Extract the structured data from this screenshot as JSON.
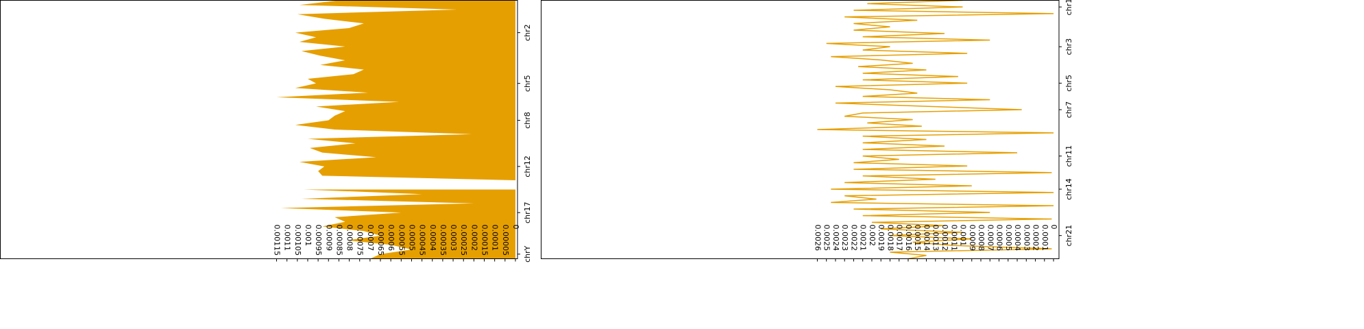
{
  "chart_data": [
    {
      "type": "area",
      "color": "#e69f00",
      "categories": [
        null,
        null,
        null,
        null,
        null,
        null,
        null,
        "chr2",
        null,
        null,
        null,
        null,
        null,
        null,
        null,
        null,
        null,
        null,
        "chr5",
        null,
        null,
        null,
        null,
        null,
        null,
        null,
        "chr8",
        null,
        null,
        null,
        null,
        null,
        null,
        null,
        null,
        null,
        "chr12",
        null,
        null,
        null,
        null,
        null,
        null,
        null,
        null,
        null,
        "chr17",
        null,
        null,
        null,
        null,
        null,
        null,
        null,
        null,
        "chrY",
        null
      ],
      "values": [
        0.00085,
        0.00104,
        0.00028,
        0.00105,
        0.00092,
        0.00073,
        0.0008,
        0.00106,
        0.00096,
        0.00104,
        0.00082,
        0.00103,
        0.00094,
        0.00082,
        0.00094,
        0.00073,
        0.00078,
        0.001,
        0.00096,
        0.00106,
        0.00071,
        0.00115,
        0.00056,
        0.00096,
        0.00082,
        0.00087,
        0.0009,
        0.00106,
        0.00087,
        0.00021,
        0.001,
        0.00077,
        0.00099,
        0.00093,
        0.00067,
        0.00104,
        0.00092,
        0.00095,
        0.00093,
        0,
        null,
        0.00102,
        0.00045,
        0.00103,
        0.0002,
        0.00113,
        0.00055,
        0.00087,
        0.00082,
        0.00093,
        0.00073,
        0.00065,
        0.00081,
        0.0006,
        0.0005,
        0.00065,
        0.0007
      ],
      "xlim": [
        0.00248,
        -1e-05
      ],
      "xticks": [
        0.00115,
        0.0011,
        0.00105,
        0.001,
        0.00095,
        0.0009,
        0.00085,
        0.0008,
        0.00075,
        0.0007,
        0.00065,
        0.0006,
        0.00055,
        0.0005,
        0.00045,
        0.0004,
        0.00035,
        0.0003,
        0.00025,
        0.0002,
        0.00015,
        0.0001,
        5e-05,
        0
      ]
    },
    {
      "type": "line",
      "color": "#e69f00",
      "categories": [
        null,
        null,
        "chr1",
        null,
        null,
        null,
        null,
        null,
        null,
        null,
        null,
        null,
        null,
        null,
        "chr3",
        null,
        null,
        null,
        null,
        null,
        null,
        null,
        null,
        null,
        null,
        "chr5",
        null,
        null,
        null,
        null,
        null,
        null,
        null,
        "chr7",
        null,
        null,
        null,
        null,
        null,
        null,
        null,
        null,
        null,
        null,
        null,
        null,
        null,
        "chr11",
        null,
        null,
        null,
        null,
        null,
        null,
        null,
        null,
        null,
        "chr14",
        null,
        null,
        null,
        null,
        null,
        null,
        null,
        null,
        null,
        null,
        null,
        null,
        null,
        "chr21",
        null,
        null,
        null,
        null,
        null,
        null,
        null
      ],
      "values": [
        0.001,
        0.00205,
        0.001,
        0.0022,
        0,
        0.0023,
        0.0015,
        0.0022,
        0.0018,
        0.0022,
        0.0012,
        0.0021,
        0.0007,
        0.0025,
        0.0018,
        0.0021,
        0.00095,
        0.00245,
        0.0019,
        0.00155,
        0.00215,
        0.0014,
        0.0021,
        0.00105,
        0.0021,
        0.00095,
        0.0024,
        0.0018,
        0.0015,
        0.0021,
        0.0007,
        0.0024,
        0.0014,
        0.00035,
        0.0021,
        0.0023,
        0.00155,
        0.00205,
        0.00145,
        0.0026,
        0,
        0.0021,
        0.0014,
        0.0021,
        0.0012,
        0.0021,
        0.0004,
        0.0021,
        0.0017,
        0.0022,
        0.00095,
        0.0022,
        2e-05,
        0.0021,
        0.0013,
        0.0023,
        0.0009,
        0.00245,
        0,
        0.0023,
        0.00195,
        0.00245,
        0,
        0.0022,
        0.0007,
        0.0021,
        2e-05,
        0.002,
        0.0012,
        0.0019,
        0.001,
        0.0018,
        0.0009,
        0.00155,
        0.0011,
        2e-05,
        0.0018,
        0.0014,
        0.0016
      ],
      "xlim": [
        0.00564,
        -6e-05
      ],
      "xticks": [
        0.0026,
        0.0025,
        0.0024,
        0.0023,
        0.0022,
        0.0021,
        0.002,
        0.0019,
        0.0018,
        0.0017,
        0.0016,
        0.0015,
        0.0014,
        0.0013,
        0.0012,
        0.0011,
        0.001,
        0.0009,
        0.0008,
        0.0007,
        0.0006,
        0.0005,
        0.0004,
        0.0003,
        0.0002,
        0.0001,
        0
      ]
    }
  ]
}
